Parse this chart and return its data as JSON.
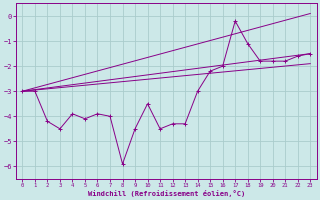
{
  "background_color": "#cce8e8",
  "grid_color": "#aacccc",
  "line_color": "#880088",
  "xlabel": "Windchill (Refroidissement éolien,°C)",
  "ylim": [
    -6.5,
    0.5
  ],
  "xlim": [
    -0.5,
    23.5
  ],
  "yticks": [
    0,
    -1,
    -2,
    -3,
    -4,
    -5,
    -6
  ],
  "xticks": [
    0,
    1,
    2,
    3,
    4,
    5,
    6,
    7,
    8,
    9,
    10,
    11,
    12,
    13,
    14,
    15,
    16,
    17,
    18,
    19,
    20,
    21,
    22,
    23
  ],
  "line1_x": [
    0,
    1,
    2,
    3,
    4,
    5,
    6,
    7,
    8,
    9,
    10,
    11,
    12,
    13,
    14,
    15,
    16,
    17,
    18,
    19,
    20,
    21,
    22,
    23
  ],
  "line1_y": [
    -3.0,
    -3.0,
    -4.2,
    -4.5,
    -3.9,
    -4.1,
    -3.9,
    -4.0,
    -5.9,
    -4.5,
    -3.5,
    -4.5,
    -4.3,
    -4.3,
    -3.0,
    -2.2,
    -2.0,
    -0.2,
    -1.1,
    -1.8,
    -1.8,
    -1.8,
    -1.6,
    -1.5
  ],
  "line2_x": [
    0,
    23
  ],
  "line2_y": [
    -3.0,
    -1.5
  ],
  "line3_x": [
    0,
    23
  ],
  "line3_y": [
    -3.0,
    0.1
  ],
  "line4_x": [
    0,
    23
  ],
  "line4_y": [
    -3.0,
    -1.9
  ]
}
